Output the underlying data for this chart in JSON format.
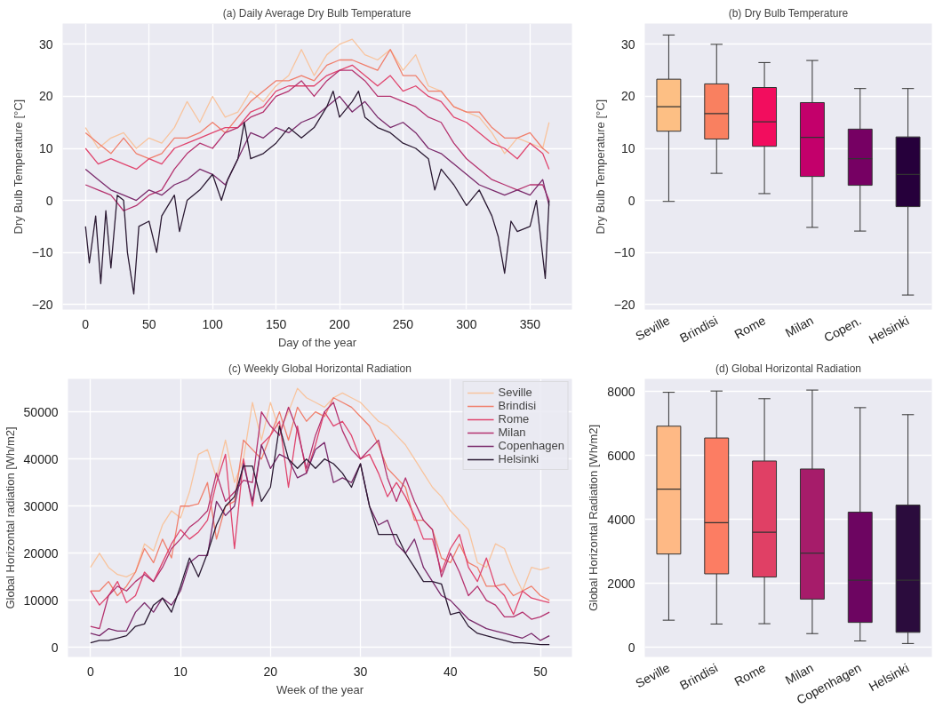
{
  "chart_data": [
    {
      "type": "line",
      "title": "(a) Daily Average Dry Bulb Temperature",
      "xlabel": "Day of the year",
      "ylabel": "Dry Bulb Temperature [°C]",
      "xlim": [
        -18,
        383
      ],
      "ylim": [
        -21,
        34
      ],
      "xticks": [
        0,
        50,
        100,
        150,
        200,
        250,
        300,
        350
      ],
      "yticks": [
        -20,
        -10,
        0,
        10,
        20,
        30
      ],
      "grid": true,
      "legend": false,
      "series": [
        {
          "color": "#f8c49e",
          "x": [
            0,
            10,
            20,
            30,
            40,
            50,
            60,
            70,
            80,
            90,
            100,
            110,
            120,
            130,
            140,
            150,
            160,
            170,
            180,
            190,
            200,
            210,
            220,
            230,
            240,
            250,
            260,
            270,
            280,
            290,
            300,
            310,
            320,
            330,
            340,
            350,
            360,
            365
          ],
          "values": [
            14,
            10,
            12,
            13,
            10,
            12,
            11,
            14,
            19,
            15,
            20,
            16,
            17,
            21,
            19,
            22,
            24,
            29,
            24,
            28,
            30,
            31,
            28,
            27,
            29,
            25,
            28,
            22,
            21,
            18,
            17,
            16,
            13,
            9,
            12,
            11,
            10,
            15
          ]
        },
        {
          "color": "#f07f6c",
          "x": [
            0,
            10,
            20,
            30,
            40,
            50,
            60,
            70,
            80,
            90,
            100,
            110,
            120,
            130,
            140,
            150,
            160,
            170,
            180,
            190,
            200,
            210,
            220,
            230,
            240,
            250,
            260,
            270,
            280,
            290,
            300,
            310,
            320,
            330,
            340,
            350,
            360,
            365
          ],
          "values": [
            13,
            11,
            9,
            12,
            9,
            8,
            9,
            12,
            12,
            13,
            15,
            13,
            16,
            19,
            21,
            23,
            23,
            24,
            23,
            26,
            27,
            27,
            26,
            25,
            29,
            24,
            24,
            21,
            21,
            18,
            17,
            17,
            14,
            12,
            12,
            13,
            10,
            9
          ]
        },
        {
          "color": "#e0456e",
          "x": [
            0,
            10,
            20,
            30,
            40,
            50,
            60,
            70,
            80,
            90,
            100,
            110,
            120,
            130,
            140,
            150,
            160,
            170,
            180,
            190,
            200,
            210,
            220,
            230,
            240,
            250,
            260,
            270,
            280,
            290,
            300,
            310,
            320,
            330,
            340,
            350,
            360,
            365
          ],
          "values": [
            10,
            7,
            8,
            7,
            6,
            8,
            7,
            10,
            11,
            12,
            13,
            14,
            14,
            17,
            18,
            21,
            22,
            22,
            22,
            24,
            25,
            26,
            24,
            22,
            24,
            21,
            22,
            20,
            19,
            16,
            15,
            13,
            11,
            10,
            8,
            11,
            9,
            6
          ]
        },
        {
          "color": "#b5336f",
          "x": [
            0,
            10,
            20,
            30,
            40,
            50,
            60,
            70,
            80,
            90,
            100,
            110,
            120,
            130,
            140,
            150,
            160,
            170,
            180,
            190,
            200,
            210,
            220,
            230,
            240,
            250,
            260,
            270,
            280,
            290,
            300,
            310,
            320,
            330,
            340,
            350,
            360,
            365
          ],
          "values": [
            3,
            2,
            1,
            -2,
            -1,
            1,
            2,
            6,
            9,
            11,
            10,
            13,
            14,
            16,
            17,
            20,
            21,
            23,
            20,
            23,
            25,
            25,
            23,
            20,
            20,
            19,
            18,
            16,
            15,
            11,
            8,
            6,
            4,
            3,
            2,
            3,
            3,
            0
          ]
        },
        {
          "color": "#7a2a6b",
          "x": [
            0,
            10,
            20,
            30,
            40,
            50,
            60,
            70,
            80,
            90,
            100,
            110,
            120,
            130,
            140,
            150,
            160,
            170,
            180,
            190,
            200,
            210,
            220,
            230,
            240,
            250,
            260,
            270,
            280,
            290,
            300,
            310,
            320,
            330,
            340,
            350,
            360,
            365
          ],
          "values": [
            6,
            4,
            2,
            1,
            0,
            2,
            1,
            3,
            4,
            6,
            5,
            3,
            8,
            13,
            12,
            14,
            13,
            15,
            16,
            18,
            20,
            17,
            19,
            16,
            14,
            15,
            13,
            10,
            9,
            7,
            5,
            3,
            2,
            1,
            2,
            1,
            4,
            -1
          ]
        },
        {
          "color": "#2b1a33",
          "x": [
            0,
            3,
            8,
            12,
            16,
            20,
            25,
            30,
            33,
            38,
            42,
            50,
            56,
            60,
            70,
            74,
            80,
            90,
            100,
            107,
            112,
            120,
            125,
            130,
            140,
            150,
            160,
            170,
            180,
            190,
            195,
            200,
            210,
            215,
            220,
            230,
            240,
            250,
            260,
            270,
            275,
            280,
            290,
            300,
            310,
            320,
            325,
            330,
            335,
            340,
            350,
            355,
            362,
            365
          ],
          "values": [
            -5,
            -12,
            -3,
            -16,
            -2,
            -13,
            1,
            0,
            -10,
            -18,
            -5,
            -4,
            -10,
            -3,
            1,
            -6,
            0,
            2,
            5,
            0,
            4,
            8,
            15,
            8,
            9,
            11,
            14,
            12,
            14,
            18,
            21,
            16,
            19,
            21,
            16,
            14,
            13,
            11,
            10,
            8,
            2,
            6,
            3,
            -1,
            2,
            -3,
            -7,
            -14,
            -4,
            -6,
            -5,
            0,
            -15,
            0
          ]
        }
      ]
    },
    {
      "type": "box",
      "title": "(b) Dry Bulb Temperature",
      "ylabel": "Dry Bulb Temperature [°C]",
      "categories": [
        "Seville",
        "Brindisi",
        "Rome",
        "Milan",
        "Copen.",
        "Helsinki"
      ],
      "colors": [
        "#fdbf84",
        "#f98060",
        "#f20d5e",
        "#c3006b",
        "#760063",
        "#26003b"
      ],
      "ylim": [
        -21,
        34
      ],
      "yticks": [
        -20,
        -10,
        0,
        10,
        20,
        30
      ],
      "grid": "y",
      "boxes": [
        {
          "low": -0.2,
          "q1": 13.3,
          "median": 18,
          "q3": 23.3,
          "high": 31.8
        },
        {
          "low": 5.2,
          "q1": 11.8,
          "median": 16.7,
          "q3": 22.4,
          "high": 30
        },
        {
          "low": 1.3,
          "q1": 10.4,
          "median": 15.1,
          "q3": 21.7,
          "high": 26.5
        },
        {
          "low": -5.2,
          "q1": 4.6,
          "median": 12.1,
          "q3": 18.8,
          "high": 26.9
        },
        {
          "low": -5.9,
          "q1": 2.9,
          "median": 8,
          "q3": 13.7,
          "high": 21.5
        },
        {
          "low": -18.2,
          "q1": -1.2,
          "median": 5,
          "q3": 12.2,
          "high": 21.5
        }
      ]
    },
    {
      "type": "line",
      "title": "(c) Weekly Global Horizontal Radiation",
      "xlabel": "Week of the year",
      "ylabel": "Global Horizontal radiation [Wh/m2]",
      "xlim": [
        -2.5,
        53.5
      ],
      "ylim": [
        -2000,
        57000
      ],
      "xticks": [
        0,
        10,
        20,
        30,
        40,
        50
      ],
      "yticks": [
        0,
        10000,
        20000,
        30000,
        40000,
        50000
      ],
      "grid": true,
      "legend": "top right",
      "x": [
        0,
        1,
        2,
        3,
        4,
        5,
        6,
        7,
        8,
        9,
        10,
        11,
        12,
        13,
        14,
        15,
        16,
        17,
        18,
        19,
        20,
        21,
        22,
        23,
        24,
        25,
        26,
        27,
        28,
        29,
        30,
        31,
        32,
        33,
        34,
        35,
        36,
        37,
        38,
        39,
        40,
        41,
        42,
        43,
        44,
        45,
        46,
        47,
        48,
        49,
        50,
        51
      ],
      "series": [
        {
          "name": "Seville",
          "color": "#f8c49e",
          "values": [
            17000,
            20000,
            17000,
            15500,
            15000,
            16000,
            22000,
            20500,
            26000,
            29000,
            27500,
            33000,
            41000,
            42000,
            36000,
            44000,
            35000,
            40000,
            52000,
            44000,
            52000,
            46000,
            50000,
            55000,
            53000,
            52000,
            51000,
            53000,
            54000,
            53000,
            52000,
            50000,
            48000,
            47000,
            45000,
            43000,
            40000,
            37000,
            34000,
            32000,
            29000,
            27000,
            25000,
            18000,
            17000,
            22000,
            21000,
            16000,
            12000,
            17000,
            16500,
            17000
          ]
        },
        {
          "name": "Brindisi",
          "color": "#f07f6c",
          "values": [
            12000,
            12000,
            14000,
            11000,
            13000,
            16000,
            21000,
            18000,
            23000,
            19000,
            30000,
            30000,
            30500,
            35000,
            23000,
            30000,
            31000,
            44000,
            42000,
            40000,
            45000,
            50000,
            44000,
            51000,
            48000,
            50000,
            49000,
            53000,
            52000,
            51000,
            49000,
            47000,
            43000,
            38000,
            36000,
            34000,
            27000,
            27000,
            25000,
            19000,
            18000,
            22000,
            18000,
            17000,
            13000,
            13000,
            13500,
            11000,
            12000,
            13000,
            11000,
            10000
          ]
        },
        {
          "name": "Rome",
          "color": "#e0456e",
          "values": [
            12000,
            9000,
            11000,
            14000,
            9500,
            11000,
            16000,
            14000,
            18000,
            22000,
            25000,
            23000,
            24500,
            27000,
            35000,
            41000,
            21000,
            40000,
            30000,
            43000,
            45000,
            48000,
            34000,
            47000,
            37000,
            43000,
            50000,
            47000,
            48000,
            45000,
            40000,
            41000,
            37000,
            32000,
            35000,
            32000,
            28000,
            23000,
            23000,
            16000,
            21000,
            24000,
            17000,
            14000,
            19000,
            13000,
            11000,
            7000,
            12000,
            10500,
            10000,
            9500
          ]
        },
        {
          "name": "Milan",
          "color": "#b5336f",
          "values": [
            4500,
            4000,
            11000,
            13000,
            12000,
            14000,
            15500,
            14000,
            17000,
            21000,
            23000,
            25500,
            27000,
            29000,
            37000,
            31000,
            33000,
            35500,
            35000,
            50000,
            47000,
            45000,
            51000,
            46000,
            38000,
            45000,
            50000,
            52000,
            46000,
            42000,
            40000,
            42000,
            44000,
            36000,
            31000,
            36000,
            31000,
            27000,
            25000,
            15000,
            20000,
            16000,
            11000,
            13000,
            10000,
            9000,
            6500,
            6500,
            7500,
            6000,
            6500,
            7500
          ]
        },
        {
          "name": "Copenhagen",
          "color": "#7a2a6b",
          "values": [
            3000,
            2500,
            4000,
            3500,
            3500,
            7500,
            9500,
            7500,
            10500,
            9000,
            12000,
            18000,
            19500,
            19500,
            31000,
            28000,
            30000,
            39000,
            31000,
            43000,
            38000,
            41000,
            40000,
            36000,
            37000,
            42000,
            43500,
            35000,
            36000,
            35000,
            39000,
            30000,
            26000,
            27000,
            22000,
            20000,
            23000,
            17000,
            14000,
            11000,
            10000,
            8000,
            6000,
            5000,
            4000,
            3500,
            3000,
            2500,
            2000,
            3000,
            1500,
            2500
          ]
        },
        {
          "name": "Helsinki",
          "color": "#2b1a33",
          "values": [
            1000,
            1500,
            1500,
            2000,
            2500,
            4500,
            5000,
            9000,
            10500,
            7500,
            13000,
            19000,
            15000,
            20000,
            26000,
            30000,
            32000,
            38500,
            38500,
            31000,
            34000,
            47000,
            40000,
            38000,
            40000,
            38000,
            40000,
            39000,
            37000,
            34000,
            39000,
            30000,
            24000,
            24000,
            24000,
            20000,
            17000,
            14000,
            14000,
            13500,
            7000,
            7500,
            4500,
            3000,
            2500,
            2000,
            1500,
            1000,
            1000,
            800,
            600,
            600
          ]
        }
      ]
    },
    {
      "type": "box",
      "title": "(d) Global Horizontal Radiation",
      "ylabel": "Global Horizontal Radiation [Wh/m2]",
      "categories": [
        "Seville",
        "Brindisi",
        "Rome",
        "Milan",
        "Copenhagen",
        "Helsinki"
      ],
      "colors": [
        "#feb985",
        "#fc7d63",
        "#e04065",
        "#a61c6a",
        "#6d0561",
        "#2b0c3d"
      ],
      "ylim": [
        -300,
        8400
      ],
      "yticks": [
        0,
        2000,
        4000,
        6000,
        8000
      ],
      "grid": "y",
      "boxes": [
        {
          "low": 850,
          "q1": 2920,
          "median": 4950,
          "q3": 6920,
          "high": 7980
        },
        {
          "low": 730,
          "q1": 2300,
          "median": 3900,
          "q3": 6550,
          "high": 8020
        },
        {
          "low": 740,
          "q1": 2200,
          "median": 3600,
          "q3": 5830,
          "high": 7780
        },
        {
          "low": 430,
          "q1": 1510,
          "median": 2950,
          "q3": 5580,
          "high": 8050
        },
        {
          "low": 200,
          "q1": 780,
          "median": 2100,
          "q3": 4230,
          "high": 7500
        },
        {
          "low": 120,
          "q1": 470,
          "median": 2100,
          "q3": 4450,
          "high": 7280
        }
      ]
    }
  ]
}
